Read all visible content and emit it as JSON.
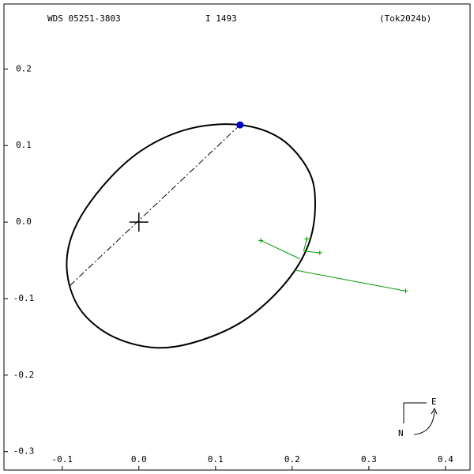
{
  "chart_data": {
    "type": "orbit",
    "title": "WDS 05251-3803",
    "subtitle": "I  1493",
    "reference": "(Tok2024b)",
    "xlim": [
      -0.176,
      0.432
    ],
    "ylim": [
      -0.324,
      0.285
    ],
    "xticks": [
      -0.1,
      {
        "value": 0,
        "label": "0.0"
      },
      0.1,
      0.2,
      0.3,
      0.4
    ],
    "yticks": [
      0.2,
      0.1,
      {
        "value": 0,
        "label": "0.0"
      },
      -0.1,
      -0.2,
      -0.3
    ],
    "orbit": {
      "color": "#000000",
      "x": [
        0.132,
        0.185,
        0.221,
        0.23,
        0.221,
        0.19,
        0.138,
        0.076,
        0.02,
        -0.037,
        -0.078,
        -0.094,
        -0.084,
        -0.047,
        0.004,
        0.066
      ],
      "y": [
        0.127,
        0.109,
        0.068,
        0.024,
        -0.03,
        -0.081,
        -0.128,
        -0.156,
        -0.164,
        -0.148,
        -0.112,
        -0.061,
        -0.009,
        0.047,
        0.094,
        0.122
      ]
    },
    "line_of_apsides": {
      "x": [
        0.132,
        -0.091
      ],
      "y": [
        0.127,
        -0.084
      ]
    },
    "primary": {
      "x": 0,
      "y": 0
    },
    "periastron": {
      "x": 0.132,
      "y": 0.127,
      "color": "#0000cc"
    },
    "observations": {
      "color": "#009900",
      "x": [
        0.159,
        0.219,
        0.236,
        0.348
      ],
      "y": [
        -0.024,
        -0.022,
        -0.04,
        -0.09
      ],
      "x_pred": [
        0.21,
        0.215,
        0.215,
        0.205
      ],
      "y_pred": [
        -0.048,
        -0.038,
        -0.038,
        -0.063
      ]
    },
    "compass": {
      "east": "E",
      "north": "N"
    }
  }
}
